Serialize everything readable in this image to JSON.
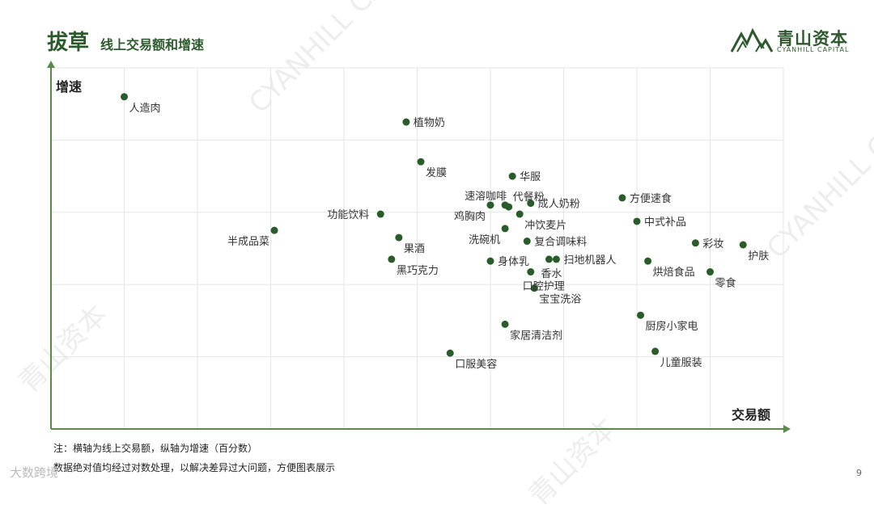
{
  "header": {
    "title": "拔草",
    "subtitle": "线上交易额和增速"
  },
  "logo": {
    "name_cn": "青山资本",
    "name_en": "CYANHILL CAPITAL"
  },
  "watermark": {
    "cn": "青山资本",
    "en": "CYANHILL CAPITAL"
  },
  "notes": {
    "line1": "注：横轴为线上交易额，纵轴为增速（百分数）",
    "line2": "数据绝对值均经过对数处理，以解决差异过大问题，方便图表展示"
  },
  "page_number": "9",
  "source_mark": "大数跨境",
  "colors": {
    "accent": "#2d5a2d",
    "marker": "#2a5c2a",
    "axis": "#5a8a4a",
    "grid": "#e6e6e6"
  },
  "chart_data": {
    "type": "scatter",
    "title": "",
    "xlabel": "交易额",
    "ylabel": "增速",
    "xlim": [
      0,
      100
    ],
    "ylim": [
      0,
      100
    ],
    "grid": true,
    "points": [
      {
        "label": "人造肉",
        "x": 10,
        "y": 92,
        "label_pos": "below-right"
      },
      {
        "label": "植物奶",
        "x": 48.5,
        "y": 85,
        "label_pos": "right"
      },
      {
        "label": "发膜",
        "x": 50.5,
        "y": 74,
        "label_pos": "below-right"
      },
      {
        "label": "华服",
        "x": 63,
        "y": 70,
        "label_pos": "right"
      },
      {
        "label": "速溶咖啡",
        "x": 62,
        "y": 62,
        "label_pos": "above-left"
      },
      {
        "label": "代餐粉",
        "x": 62.5,
        "y": 61.5,
        "label_pos": "above-right"
      },
      {
        "label": "成人奶粉",
        "x": 65.5,
        "y": 62.5,
        "label_pos": "right"
      },
      {
        "label": "鸡胸肉",
        "x": 60,
        "y": 62,
        "label_pos": "below-left"
      },
      {
        "label": "冲饮麦片",
        "x": 64,
        "y": 59.5,
        "label_pos": "below-right"
      },
      {
        "label": "功能饮料",
        "x": 45,
        "y": 59.5,
        "label_pos": "left"
      },
      {
        "label": "方便速食",
        "x": 78,
        "y": 64,
        "label_pos": "right"
      },
      {
        "label": "中式补品",
        "x": 80,
        "y": 57.5,
        "label_pos": "right"
      },
      {
        "label": "半成品菜",
        "x": 30.5,
        "y": 55,
        "label_pos": "below-left"
      },
      {
        "label": "洗碗机",
        "x": 62,
        "y": 55.5,
        "label_pos": "below-left"
      },
      {
        "label": "果酒",
        "x": 47.5,
        "y": 53,
        "label_pos": "below-right"
      },
      {
        "label": "复合调味料",
        "x": 65,
        "y": 52,
        "label_pos": "right"
      },
      {
        "label": "彩妆",
        "x": 88,
        "y": 51.5,
        "label_pos": "right"
      },
      {
        "label": "护肤",
        "x": 94.5,
        "y": 51,
        "label_pos": "below-right"
      },
      {
        "label": "黑巧克力",
        "x": 46.5,
        "y": 47,
        "label_pos": "below-right"
      },
      {
        "label": "身体乳",
        "x": 60,
        "y": 46.5,
        "label_pos": "right"
      },
      {
        "label": "扫地机器人",
        "x": 69,
        "y": 47,
        "label_pos": "right"
      },
      {
        "label": "香水",
        "x": 68,
        "y": 47,
        "label_pos": "below"
      },
      {
        "label": "烘焙食品",
        "x": 81.5,
        "y": 46.5,
        "label_pos": "below-right"
      },
      {
        "label": "零食",
        "x": 90,
        "y": 43.5,
        "label_pos": "below-right"
      },
      {
        "label": "口腔护理",
        "x": 65.5,
        "y": 43.5,
        "label_pos": "below"
      },
      {
        "label": "宝宝洗浴",
        "x": 66,
        "y": 39,
        "label_pos": "below-right"
      },
      {
        "label": "厨房小家电",
        "x": 80.5,
        "y": 31.5,
        "label_pos": "below-right"
      },
      {
        "label": "家居清洁剂",
        "x": 62,
        "y": 29,
        "label_pos": "below-right"
      },
      {
        "label": "儿童服装",
        "x": 82.5,
        "y": 21.5,
        "label_pos": "below-right"
      },
      {
        "label": "口服美容",
        "x": 54.5,
        "y": 21,
        "label_pos": "below-right"
      }
    ]
  }
}
